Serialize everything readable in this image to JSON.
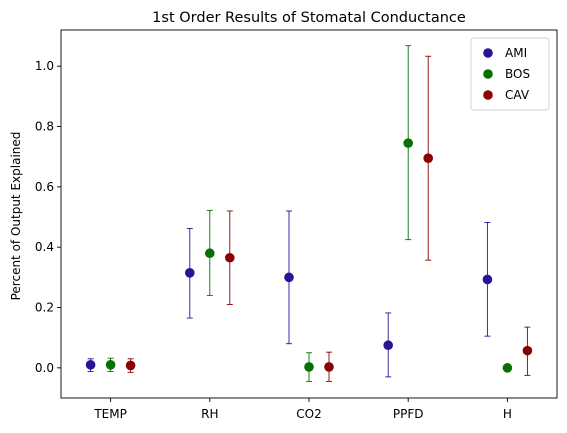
{
  "chart_data": {
    "type": "scatter",
    "title": "1st Order Results of Stomatal Conductance",
    "xlabel": "",
    "ylabel": "Percent of Output Explained",
    "categories": [
      "TEMP",
      "RH",
      "CO2",
      "PPFD",
      "H"
    ],
    "ylim": [
      -0.1,
      1.12
    ],
    "yticks": [
      0.0,
      0.2,
      0.4,
      0.6,
      0.8,
      1.0
    ],
    "ytick_labels": [
      "0.0",
      "0.2",
      "0.4",
      "0.6",
      "0.8",
      "1.0"
    ],
    "grid": false,
    "legend_position": "top-right",
    "series": [
      {
        "name": "AMI",
        "color": "#2a1496",
        "values": [
          0.01,
          0.315,
          0.3,
          0.075,
          0.293
        ],
        "lower": [
          -0.012,
          0.165,
          0.08,
          -0.03,
          0.105
        ],
        "upper": [
          0.03,
          0.462,
          0.52,
          0.182,
          0.482
        ]
      },
      {
        "name": "BOS",
        "color": "#077000",
        "values": [
          0.01,
          0.38,
          0.003,
          0.745,
          0.0
        ],
        "lower": [
          -0.012,
          0.24,
          -0.045,
          0.425,
          0.0
        ],
        "upper": [
          0.032,
          0.522,
          0.05,
          1.068,
          0.0
        ]
      },
      {
        "name": "CAV",
        "color": "#8b0000",
        "values": [
          0.008,
          0.365,
          0.003,
          0.695,
          0.057
        ],
        "lower": [
          -0.015,
          0.21,
          -0.045,
          0.357,
          -0.025
        ],
        "upper": [
          0.03,
          0.52,
          0.052,
          1.033,
          0.135
        ]
      }
    ]
  }
}
